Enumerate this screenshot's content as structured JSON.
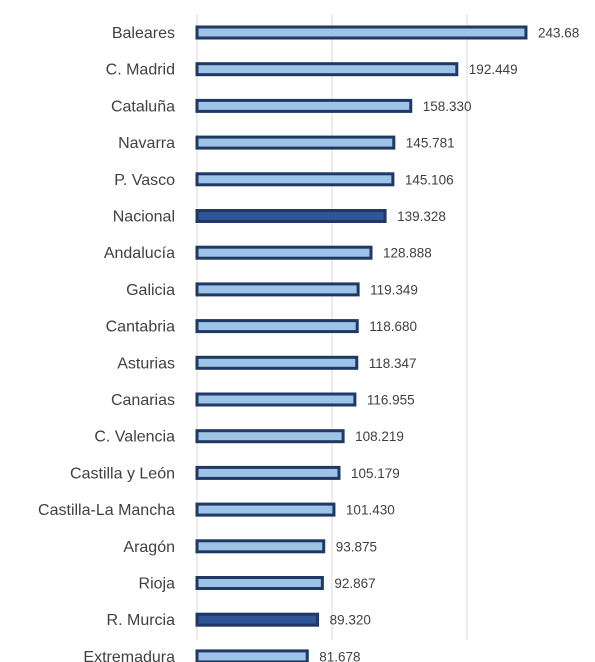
{
  "chart_data": {
    "type": "bar",
    "orientation": "horizontal",
    "title": "",
    "xlabel": "",
    "ylabel": "",
    "xlim": [
      0,
      250
    ],
    "grid": true,
    "legend": "none",
    "categories": [
      "Baleares",
      "C. Madrid",
      "Cataluña",
      "Navarra",
      "P. Vasco",
      "Nacional",
      "Andalucía",
      "Galicia",
      "Cantabria",
      "Asturias",
      "Canarias",
      "C. Valencia",
      "Castilla y León",
      "Castilla-La Mancha",
      "Aragón",
      "Rioja",
      "R. Murcia",
      "Extremadura"
    ],
    "values": [
      243.68,
      192.449,
      158.33,
      145.781,
      145.106,
      139.328,
      128.888,
      119.349,
      118.68,
      118.347,
      116.955,
      108.219,
      105.179,
      101.43,
      93.875,
      92.867,
      89.32,
      81.678
    ],
    "value_labels": [
      "243.68",
      "192.449",
      "158.330",
      "145.781",
      "145.106",
      "139.328",
      "128.888",
      "119.349",
      "118.680",
      "118.347",
      "116.955",
      "108.219",
      "105.179",
      "101.430",
      "93.875",
      "92.867",
      "89.320",
      "81.678"
    ],
    "highlighted": [
      "Nacional",
      "R. Murcia"
    ],
    "colors": {
      "bar_fill": "#9dc3e6",
      "bar_fill_highlight": "#2e5597",
      "bar_border": "#1f3864",
      "gridline": "#d9d9d9",
      "text": "#404040"
    }
  }
}
